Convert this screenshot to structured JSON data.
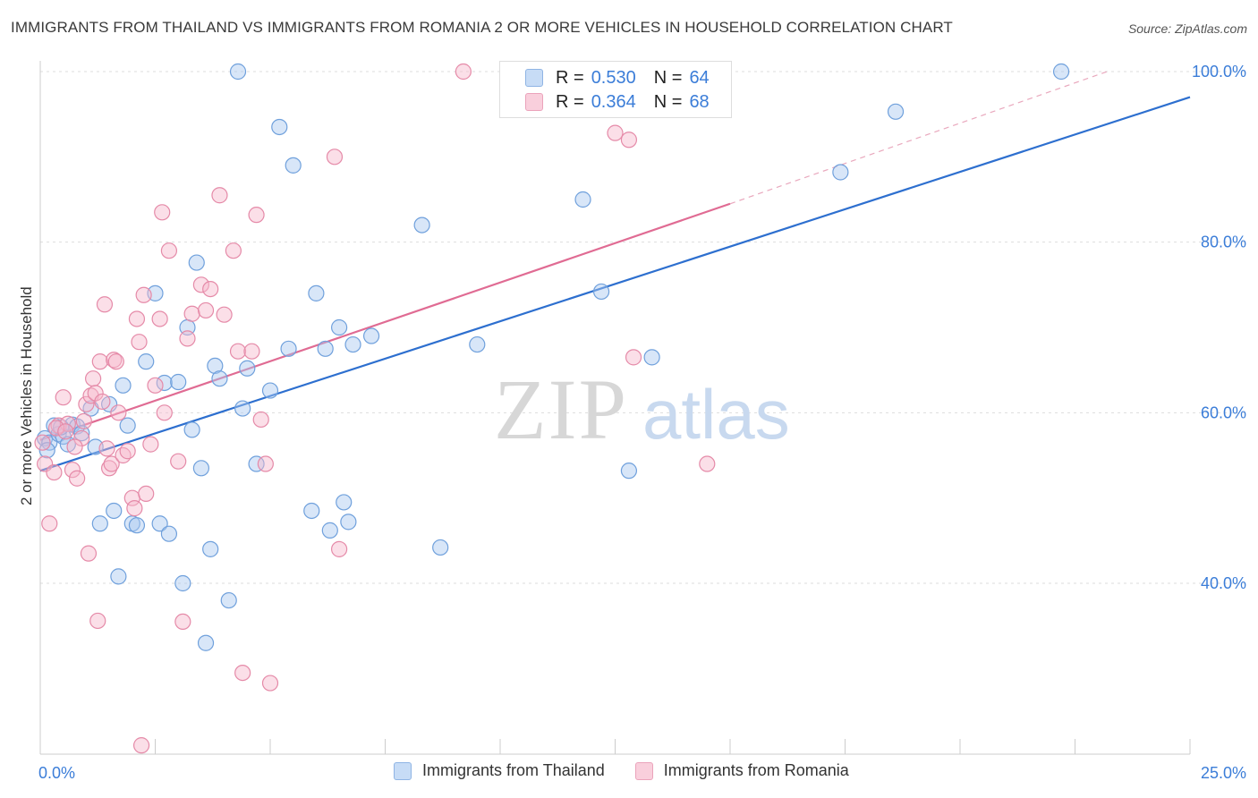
{
  "header": {
    "title": "IMMIGRANTS FROM THAILAND VS IMMIGRANTS FROM ROMANIA 2 OR MORE VEHICLES IN HOUSEHOLD CORRELATION CHART",
    "source": "Source: ZipAtlas.com"
  },
  "watermark": {
    "zip": "ZIP",
    "atlas": "atlas"
  },
  "legend": {
    "r_label": "R =",
    "n_label": "N =",
    "thailand": {
      "r": "0.530",
      "n": "64"
    },
    "romania": {
      "r": "0.364",
      "n": "68"
    }
  },
  "colors": {
    "thailand_fill": "#a9c8f0",
    "thailand_stroke": "#6fa0dc",
    "thailand_line": "#2d6fcf",
    "romania_fill": "#f6b8cb",
    "romania_stroke": "#e58aa8",
    "romania_line": "#e06b93",
    "axis_text_blue": "#3b7dd8",
    "grid": "#dddddd"
  },
  "chart_data": {
    "type": "scatter",
    "title": "IMMIGRANTS FROM THAILAND VS IMMIGRANTS FROM ROMANIA 2 OR MORE VEHICLES IN HOUSEHOLD CORRELATION CHART",
    "xlabel": "",
    "ylabel": "2 or more Vehicles in Household",
    "xlim": [
      0,
      25
    ],
    "ylim": [
      20,
      102
    ],
    "x_tick_labels": [
      "0.0%",
      "25.0%"
    ],
    "y_ticks": [
      40,
      60,
      80,
      100
    ],
    "y_tick_labels": [
      "40.0%",
      "60.0%",
      "80.0%",
      "100.0%"
    ],
    "grid": true,
    "series": [
      {
        "name": "Immigrants from Thailand",
        "r": 0.53,
        "n": 64,
        "trend": {
          "x": [
            0,
            25
          ],
          "y": [
            53.2,
            97.0
          ],
          "dashed_extension": false
        },
        "points": [
          [
            0.1,
            57.0
          ],
          [
            0.2,
            56.5
          ],
          [
            0.3,
            58.5
          ],
          [
            0.4,
            57.5
          ],
          [
            0.5,
            57.2
          ],
          [
            0.6,
            56.3
          ],
          [
            0.7,
            58.6
          ],
          [
            0.8,
            58.4
          ],
          [
            0.9,
            57.6
          ],
          [
            1.1,
            60.5
          ],
          [
            1.2,
            56.0
          ],
          [
            1.3,
            47.0
          ],
          [
            1.5,
            61.0
          ],
          [
            1.6,
            48.5
          ],
          [
            1.7,
            40.8
          ],
          [
            1.8,
            63.2
          ],
          [
            1.9,
            58.5
          ],
          [
            2.0,
            47.0
          ],
          [
            2.1,
            46.8
          ],
          [
            2.3,
            66.0
          ],
          [
            2.5,
            74.0
          ],
          [
            2.6,
            47.0
          ],
          [
            2.7,
            63.5
          ],
          [
            2.8,
            45.8
          ],
          [
            3.0,
            63.6
          ],
          [
            3.1,
            40.0
          ],
          [
            3.2,
            70.0
          ],
          [
            3.3,
            58.0
          ],
          [
            3.4,
            77.6
          ],
          [
            3.5,
            53.5
          ],
          [
            3.6,
            33.0
          ],
          [
            3.7,
            44.0
          ],
          [
            3.8,
            65.5
          ],
          [
            3.9,
            64.0
          ],
          [
            4.1,
            38.0
          ],
          [
            4.3,
            100.0
          ],
          [
            4.4,
            60.5
          ],
          [
            4.5,
            65.2
          ],
          [
            4.7,
            54.0
          ],
          [
            5.0,
            62.6
          ],
          [
            5.2,
            93.5
          ],
          [
            5.4,
            67.5
          ],
          [
            5.5,
            89.0
          ],
          [
            5.9,
            48.5
          ],
          [
            6.0,
            74.0
          ],
          [
            6.2,
            67.5
          ],
          [
            6.3,
            46.2
          ],
          [
            6.5,
            70.0
          ],
          [
            6.6,
            49.5
          ],
          [
            6.7,
            47.2
          ],
          [
            6.8,
            68.0
          ],
          [
            7.2,
            69.0
          ],
          [
            8.3,
            82.0
          ],
          [
            8.7,
            44.2
          ],
          [
            9.5,
            68.0
          ],
          [
            11.8,
            85.0
          ],
          [
            12.2,
            74.2
          ],
          [
            12.8,
            53.2
          ],
          [
            13.3,
            66.5
          ],
          [
            17.4,
            88.2
          ],
          [
            18.6,
            95.3
          ],
          [
            22.2,
            100.0
          ],
          [
            0.15,
            55.6
          ],
          [
            0.45,
            58.3
          ]
        ]
      },
      {
        "name": "Immigrants from Romania",
        "r": 0.364,
        "n": 68,
        "trend": {
          "x": [
            0,
            15
          ],
          "y": [
            56.8,
            84.5
          ],
          "dashed_extension": {
            "x": [
              15,
              23.2
            ],
            "y": [
              84.5,
              100.0
            ]
          }
        },
        "points": [
          [
            0.1,
            54.0
          ],
          [
            0.2,
            47.0
          ],
          [
            0.3,
            53.0
          ],
          [
            0.4,
            58.5
          ],
          [
            0.5,
            61.8
          ],
          [
            0.6,
            58.7
          ],
          [
            0.7,
            53.3
          ],
          [
            0.8,
            52.3
          ],
          [
            0.9,
            57.0
          ],
          [
            1.0,
            61.0
          ],
          [
            1.05,
            43.5
          ],
          [
            1.1,
            62.0
          ],
          [
            1.15,
            64.0
          ],
          [
            1.2,
            62.3
          ],
          [
            1.25,
            35.6
          ],
          [
            1.3,
            66.0
          ],
          [
            1.35,
            61.3
          ],
          [
            1.4,
            72.7
          ],
          [
            1.5,
            53.5
          ],
          [
            1.55,
            54.0
          ],
          [
            1.6,
            66.2
          ],
          [
            1.65,
            66.0
          ],
          [
            1.7,
            60.0
          ],
          [
            1.8,
            55.0
          ],
          [
            1.9,
            55.5
          ],
          [
            2.0,
            50.0
          ],
          [
            2.05,
            48.8
          ],
          [
            2.1,
            71.0
          ],
          [
            2.15,
            68.3
          ],
          [
            2.2,
            21.0
          ],
          [
            2.25,
            73.8
          ],
          [
            2.3,
            50.5
          ],
          [
            2.4,
            56.3
          ],
          [
            2.5,
            63.2
          ],
          [
            2.6,
            71.0
          ],
          [
            2.65,
            83.5
          ],
          [
            2.7,
            60.0
          ],
          [
            2.8,
            79.0
          ],
          [
            3.0,
            54.3
          ],
          [
            3.1,
            35.5
          ],
          [
            3.2,
            68.7
          ],
          [
            3.3,
            71.6
          ],
          [
            3.5,
            75.0
          ],
          [
            3.6,
            72.0
          ],
          [
            3.7,
            74.5
          ],
          [
            3.9,
            85.5
          ],
          [
            4.0,
            71.5
          ],
          [
            4.2,
            79.0
          ],
          [
            4.3,
            67.2
          ],
          [
            4.4,
            29.5
          ],
          [
            4.6,
            67.2
          ],
          [
            4.7,
            83.2
          ],
          [
            4.8,
            59.2
          ],
          [
            4.9,
            54.0
          ],
          [
            5.0,
            28.3
          ],
          [
            6.4,
            90.0
          ],
          [
            6.5,
            44.0
          ],
          [
            9.2,
            100.0
          ],
          [
            12.5,
            92.8
          ],
          [
            12.8,
            92.0
          ],
          [
            12.9,
            66.5
          ],
          [
            14.5,
            54.0
          ],
          [
            0.05,
            56.5
          ],
          [
            0.35,
            58.2
          ],
          [
            0.55,
            57.8
          ],
          [
            0.75,
            56.0
          ],
          [
            0.95,
            59.0
          ],
          [
            1.45,
            55.8
          ]
        ]
      }
    ]
  },
  "bottom_legend": {
    "thailand": "Immigrants from Thailand",
    "romania": "Immigrants from Romania"
  }
}
